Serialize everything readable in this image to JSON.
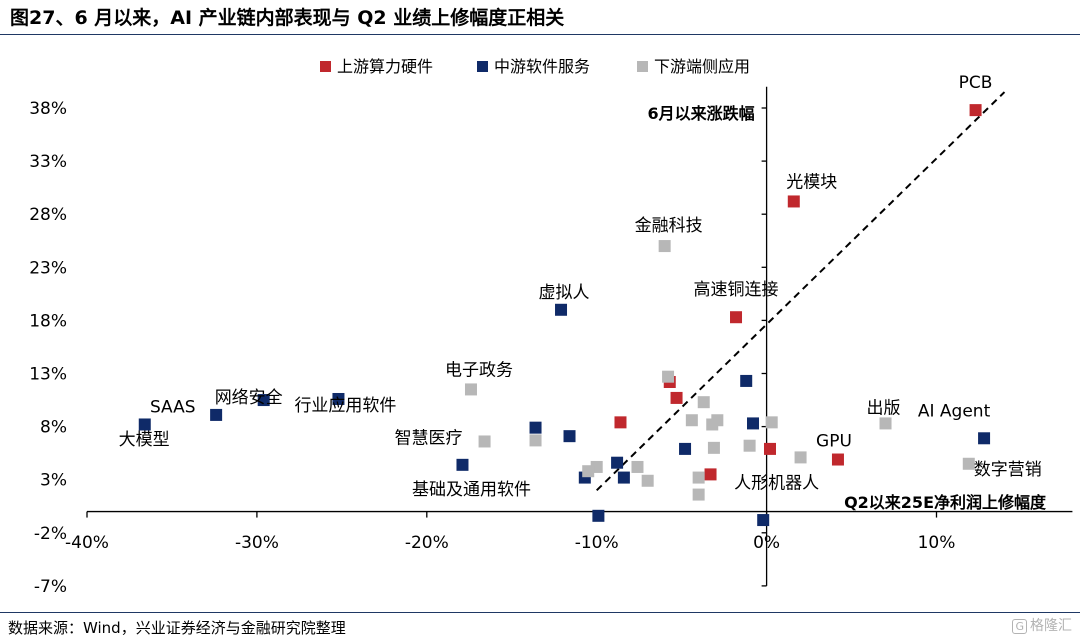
{
  "title": "图27、6 月以来，AI 产业链内部表现与 Q2 业绩上修幅度正相关",
  "source": "数据来源：Wind，兴业证券经济与金融研究院整理",
  "logo_text": "格隆汇",
  "logo_mark": "G",
  "chart_data": {
    "type": "scatter",
    "xlabel": "Q2以来25E净利润上修幅度",
    "ylabel": "6月以来涨跌幅",
    "xlim": [
      -40,
      18
    ],
    "ylim": [
      -7,
      40
    ],
    "x_ticks": [
      -40,
      -30,
      -20,
      -10,
      0,
      10
    ],
    "x_tick_labels": [
      "-40%",
      "-30%",
      "-20%",
      "-10%",
      "0%",
      "10%"
    ],
    "y_ticks": [
      38,
      33,
      28,
      23,
      18,
      13,
      8,
      3,
      -2,
      -7
    ],
    "y_tick_labels": [
      "38%",
      "33%",
      "28%",
      "23%",
      "18%",
      "13%",
      "8%",
      "3%",
      "-2%",
      "-7%"
    ],
    "grid": false,
    "legend_position": "top",
    "trendline": "dashed",
    "trendline_points": [
      [
        -10,
        2
      ],
      [
        14,
        39.5
      ]
    ],
    "series": [
      {
        "name": "上游算力硬件",
        "color": "#c0282d",
        "points": [
          {
            "x": 12.3,
            "y": 37.8,
            "label": "PCB"
          },
          {
            "x": 1.6,
            "y": 29.2,
            "label": "光模块"
          },
          {
            "x": -1.8,
            "y": 18.3,
            "label": "高速铜连接"
          },
          {
            "x": 4.2,
            "y": 4.9,
            "label": "GPU"
          },
          {
            "x": -5.7,
            "y": 12.2
          },
          {
            "x": -5.3,
            "y": 10.7
          },
          {
            "x": -8.6,
            "y": 8.4
          },
          {
            "x": -3.3,
            "y": 3.5
          },
          {
            "x": 0.2,
            "y": 5.9
          }
        ]
      },
      {
        "name": "中游软件服务",
        "color": "#0f2a68",
        "points": [
          {
            "x": -36.6,
            "y": 8.2,
            "label": "SAAS"
          },
          {
            "x": -32.4,
            "y": 9.1,
            "label": "大模型"
          },
          {
            "x": -29.6,
            "y": 10.5,
            "label": "网络安全"
          },
          {
            "x": -25.2,
            "y": 10.6,
            "label": "行业应用软件"
          },
          {
            "x": -12.1,
            "y": 19.0,
            "label": "虚拟人"
          },
          {
            "x": 12.8,
            "y": 6.9,
            "label": "AI Agent"
          },
          {
            "x": -17.9,
            "y": 4.4,
            "label": "基础及通用软件"
          },
          {
            "x": -13.6,
            "y": 7.9
          },
          {
            "x": -11.6,
            "y": 7.1
          },
          {
            "x": -10.7,
            "y": 3.2
          },
          {
            "x": -8.8,
            "y": 4.6
          },
          {
            "x": -8.4,
            "y": 3.2
          },
          {
            "x": -4.8,
            "y": 5.9
          },
          {
            "x": -1.2,
            "y": 12.3
          },
          {
            "x": -0.8,
            "y": 8.3
          },
          {
            "x": -0.2,
            "y": -0.8
          },
          {
            "x": -9.9,
            "y": -0.4
          }
        ]
      },
      {
        "name": "下游端侧应用",
        "color": "#b7b7b7",
        "points": [
          {
            "x": -6.0,
            "y": 25.0,
            "label": "金融科技"
          },
          {
            "x": -17.4,
            "y": 11.5,
            "label": "电子政务"
          },
          {
            "x": -16.6,
            "y": 6.6,
            "label": "智慧医疗"
          },
          {
            "x": 7.0,
            "y": 8.3,
            "label": "出版"
          },
          {
            "x": 11.9,
            "y": 4.5,
            "label": "数字营销"
          },
          {
            "x": 2.0,
            "y": 5.1,
            "label": "人形机器人"
          },
          {
            "x": -13.6,
            "y": 6.7
          },
          {
            "x": -10.0,
            "y": 4.2
          },
          {
            "x": -10.5,
            "y": 3.8
          },
          {
            "x": -7.6,
            "y": 4.2
          },
          {
            "x": -7.0,
            "y": 2.9
          },
          {
            "x": -5.8,
            "y": 12.7
          },
          {
            "x": -4.4,
            "y": 8.6
          },
          {
            "x": -3.7,
            "y": 10.3
          },
          {
            "x": -3.2,
            "y": 8.2
          },
          {
            "x": -2.9,
            "y": 8.6
          },
          {
            "x": -3.1,
            "y": 6.0
          },
          {
            "x": -4.0,
            "y": 3.2
          },
          {
            "x": -4.0,
            "y": 1.6
          },
          {
            "x": -1.0,
            "y": 6.2
          },
          {
            "x": 0.3,
            "y": 8.4
          }
        ]
      }
    ]
  }
}
